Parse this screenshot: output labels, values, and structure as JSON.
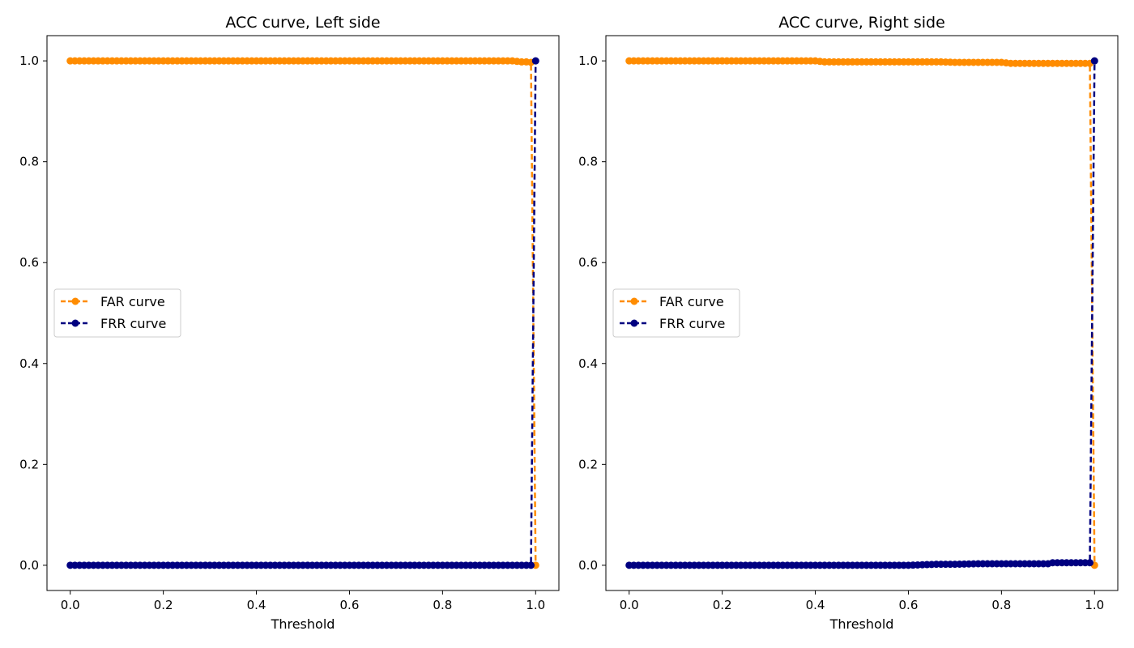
{
  "chart_data": [
    {
      "type": "line",
      "title": "ACC curve, Left side",
      "xlabel": "Threshold",
      "ylabel": "",
      "xlim": [
        -0.05,
        1.05
      ],
      "ylim": [
        -0.05,
        1.05
      ],
      "xticks": [
        "0.0",
        "0.2",
        "0.4",
        "0.6",
        "0.8",
        "1.0"
      ],
      "yticks": [
        "0.0",
        "0.2",
        "0.4",
        "0.6",
        "0.8",
        "1.0"
      ],
      "grid": false,
      "legend_placement": "center-left",
      "series": [
        {
          "name": "FAR curve",
          "color": "#ff8c00",
          "linestyle": "dashed",
          "marker": "circle",
          "x": [
            0.0,
            0.1,
            0.2,
            0.3,
            0.4,
            0.5,
            0.6,
            0.7,
            0.8,
            0.9,
            0.95,
            0.96,
            0.97,
            0.98,
            0.99,
            1.0
          ],
          "y": [
            1.0,
            1.0,
            1.0,
            1.0,
            1.0,
            1.0,
            1.0,
            1.0,
            1.0,
            1.0,
            1.0,
            0.999,
            0.998,
            0.998,
            0.997,
            0.0
          ]
        },
        {
          "name": "FRR curve",
          "color": "#000080",
          "linestyle": "dashed",
          "marker": "circle",
          "x": [
            0.0,
            0.1,
            0.2,
            0.3,
            0.4,
            0.5,
            0.6,
            0.7,
            0.8,
            0.9,
            0.95,
            0.99,
            1.0
          ],
          "y": [
            0.0,
            0.0,
            0.0,
            0.0,
            0.0,
            0.0,
            0.0,
            0.0,
            0.0,
            0.0,
            0.0,
            0.0,
            1.0
          ]
        }
      ]
    },
    {
      "type": "line",
      "title": "ACC curve, Right side",
      "xlabel": "Threshold",
      "ylabel": "",
      "xlim": [
        -0.05,
        1.05
      ],
      "ylim": [
        -0.05,
        1.05
      ],
      "xticks": [
        "0.0",
        "0.2",
        "0.4",
        "0.6",
        "0.8",
        "1.0"
      ],
      "yticks": [
        "0.0",
        "0.2",
        "0.4",
        "0.6",
        "0.8",
        "1.0"
      ],
      "grid": false,
      "legend_placement": "center-left",
      "series": [
        {
          "name": "FAR curve",
          "color": "#ff8c00",
          "linestyle": "dashed",
          "marker": "circle",
          "x": [
            0.0,
            0.1,
            0.2,
            0.3,
            0.4,
            0.42,
            0.5,
            0.6,
            0.67,
            0.7,
            0.8,
            0.82,
            0.9,
            0.98,
            0.99,
            1.0
          ],
          "y": [
            1.0,
            1.0,
            1.0,
            1.0,
            1.0,
            0.998,
            0.998,
            0.998,
            0.998,
            0.997,
            0.997,
            0.995,
            0.995,
            0.995,
            0.995,
            0.0
          ]
        },
        {
          "name": "FRR curve",
          "color": "#000080",
          "linestyle": "dashed",
          "marker": "circle",
          "x": [
            0.0,
            0.1,
            0.2,
            0.3,
            0.4,
            0.5,
            0.6,
            0.66,
            0.7,
            0.75,
            0.8,
            0.9,
            0.91,
            0.98,
            0.99,
            1.0
          ],
          "y": [
            0.0,
            0.0,
            0.0,
            0.0,
            0.0,
            0.0,
            0.0,
            0.002,
            0.002,
            0.003,
            0.003,
            0.003,
            0.005,
            0.005,
            0.005,
            1.0
          ]
        }
      ]
    }
  ]
}
